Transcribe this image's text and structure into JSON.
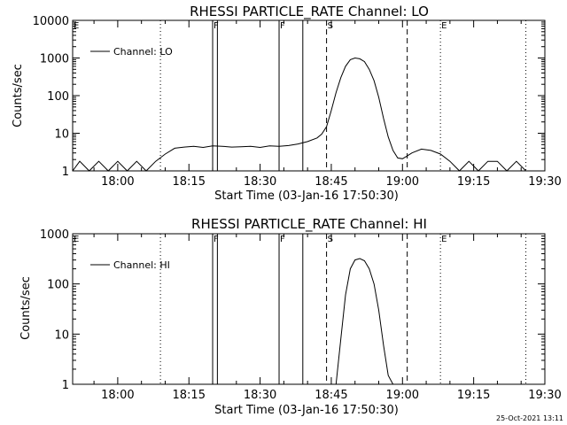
{
  "footer": {
    "timestamp": "25-Oct-2021 13:11"
  },
  "chart_data": [
    {
      "type": "line",
      "title": "RHESSI PARTICLE_RATE Channel: LO",
      "xlabel": "Start Time (03-Jan-16 17:50:30)",
      "ylabel": "Counts/sec",
      "y_scale": "log",
      "xlim": [
        "17:50:30",
        "19:30"
      ],
      "ylim": [
        1,
        10000
      ],
      "x_ticks": [
        "18:00",
        "18:15",
        "18:30",
        "18:45",
        "19:00",
        "19:15",
        "19:30"
      ],
      "y_ticks": [
        "1",
        "10",
        "100",
        "1000",
        "10000"
      ],
      "legend": {
        "position": "top-left",
        "entries": [
          "Channel: LO"
        ]
      },
      "series": [
        {
          "name": "Channel: LO",
          "x": [
            "17:50:30",
            "17:52",
            "17:54",
            "17:56",
            "17:58",
            "18:00",
            "18:02",
            "18:04",
            "18:06",
            "18:08",
            "18:10",
            "18:12",
            "18:14",
            "18:16",
            "18:18",
            "18:20",
            "18:22",
            "18:24",
            "18:26",
            "18:28",
            "18:30",
            "18:32",
            "18:34",
            "18:36",
            "18:38",
            "18:40",
            "18:42",
            "18:43",
            "18:44",
            "18:45",
            "18:46",
            "18:47",
            "18:48",
            "18:49",
            "18:50",
            "18:51",
            "18:52",
            "18:53",
            "18:54",
            "18:55",
            "18:56",
            "18:57",
            "18:58",
            "18:59",
            "19:00",
            "19:01",
            "19:02",
            "19:04",
            "19:06",
            "19:08",
            "19:10",
            "19:12",
            "19:14",
            "19:16",
            "19:18",
            "19:20",
            "19:22",
            "19:24",
            "19:26"
          ],
          "values": [
            1,
            1.8,
            1,
            1.8,
            1,
            1.8,
            1,
            1.8,
            1,
            1.8,
            2.8,
            4,
            4.3,
            4.5,
            4.2,
            4.6,
            4.5,
            4.3,
            4.4,
            4.5,
            4.2,
            4.6,
            4.5,
            4.7,
            5.2,
            6,
            7.5,
            9.5,
            15,
            40,
            120,
            300,
            600,
            900,
            1000,
            950,
            800,
            500,
            250,
            90,
            25,
            8,
            3.5,
            2.2,
            2.1,
            2.5,
            3,
            3.8,
            3.5,
            2.8,
            1.8,
            1,
            1.8,
            1,
            1.8,
            1.8,
            1,
            1.8,
            1
          ]
        }
      ],
      "vertical_markers": [
        {
          "label": "E",
          "time": "17:50:30",
          "style": "dotted"
        },
        {
          "label": "",
          "time": "18:09",
          "style": "dotted"
        },
        {
          "label": "F",
          "time": "18:20",
          "style": "solid"
        },
        {
          "label": "",
          "time": "18:21",
          "style": "solid"
        },
        {
          "label": "F",
          "time": "18:34",
          "style": "solid"
        },
        {
          "label": "",
          "time": "18:39",
          "style": "solid"
        },
        {
          "label": "S",
          "time": "18:44",
          "style": "dashed"
        },
        {
          "label": "",
          "time": "19:01",
          "style": "dashed"
        },
        {
          "label": "E",
          "time": "19:08",
          "style": "dotted"
        },
        {
          "label": "",
          "time": "19:26",
          "style": "dotted"
        }
      ]
    },
    {
      "type": "line",
      "title": "RHESSI PARTICLE_RATE Channel: HI",
      "xlabel": "Start Time (03-Jan-16 17:50:30)",
      "ylabel": "Counts/sec",
      "y_scale": "log",
      "xlim": [
        "17:50:30",
        "19:30"
      ],
      "ylim": [
        1,
        1000
      ],
      "x_ticks": [
        "18:00",
        "18:15",
        "18:30",
        "18:45",
        "19:00",
        "19:15",
        "19:30"
      ],
      "y_ticks": [
        "1",
        "10",
        "100",
        "1000"
      ],
      "legend": {
        "position": "top-left",
        "entries": [
          "Channel: HI"
        ]
      },
      "series": [
        {
          "name": "Channel: HI",
          "x": [
            "18:46",
            "18:47",
            "18:48",
            "18:49",
            "18:50",
            "18:51",
            "18:52",
            "18:53",
            "18:54",
            "18:55",
            "18:56",
            "18:57",
            "18:58"
          ],
          "values": [
            1,
            8,
            60,
            200,
            300,
            320,
            290,
            200,
            100,
            30,
            6,
            1.5,
            1
          ]
        }
      ],
      "vertical_markers": [
        {
          "label": "E",
          "time": "17:50:30",
          "style": "dotted"
        },
        {
          "label": "",
          "time": "18:09",
          "style": "dotted"
        },
        {
          "label": "F",
          "time": "18:20",
          "style": "solid"
        },
        {
          "label": "",
          "time": "18:21",
          "style": "solid"
        },
        {
          "label": "F",
          "time": "18:34",
          "style": "solid"
        },
        {
          "label": "",
          "time": "18:39",
          "style": "solid"
        },
        {
          "label": "S",
          "time": "18:44",
          "style": "dashed"
        },
        {
          "label": "",
          "time": "19:01",
          "style": "dashed"
        },
        {
          "label": "E",
          "time": "19:08",
          "style": "dotted"
        },
        {
          "label": "",
          "time": "19:26",
          "style": "dotted"
        }
      ]
    }
  ]
}
